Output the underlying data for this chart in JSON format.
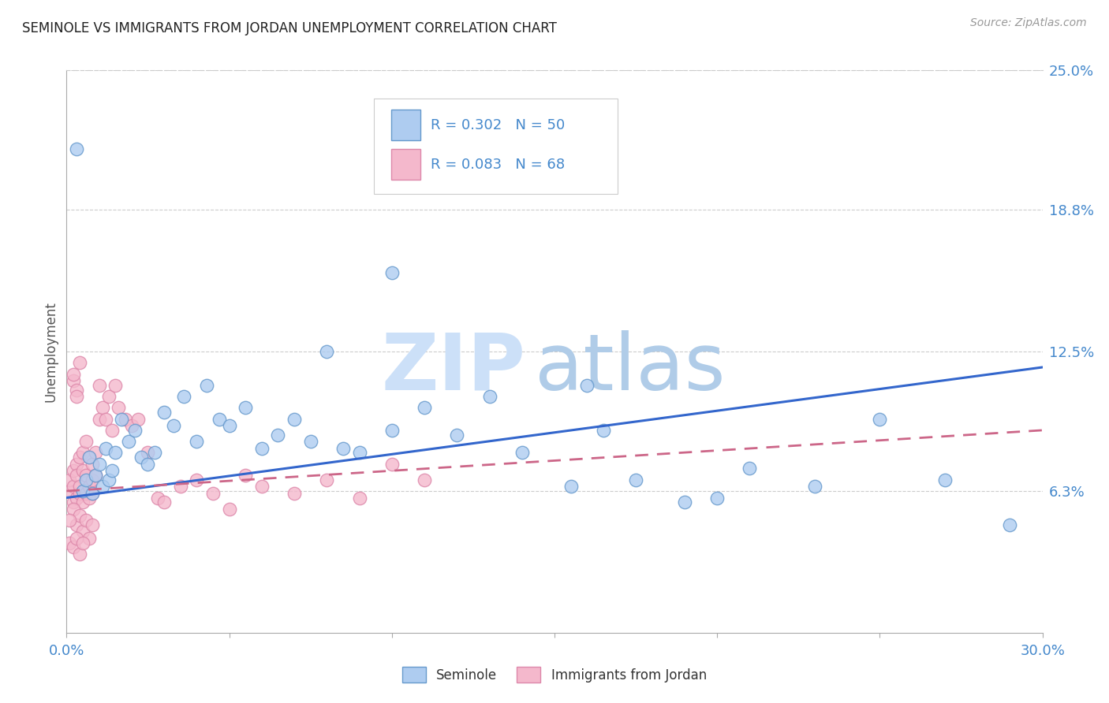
{
  "title": "SEMINOLE VS IMMIGRANTS FROM JORDAN UNEMPLOYMENT CORRELATION CHART",
  "source": "Source: ZipAtlas.com",
  "ylabel": "Unemployment",
  "xlim": [
    0.0,
    0.3
  ],
  "ylim": [
    0.0,
    0.25
  ],
  "xtick_positions": [
    0.0,
    0.05,
    0.1,
    0.15,
    0.2,
    0.25,
    0.3
  ],
  "xtick_labels": [
    "0.0%",
    "",
    "",
    "",
    "",
    "",
    "30.0%"
  ],
  "ytick_right": [
    0.063,
    0.125,
    0.188,
    0.25
  ],
  "ytick_right_labels": [
    "6.3%",
    "12.5%",
    "18.8%",
    "25.0%"
  ],
  "series1_name": "Seminole",
  "series1_R": "0.302",
  "series1_N": "50",
  "series1_color": "#aeccf0",
  "series1_edge": "#6699cc",
  "series2_name": "Immigrants from Jordan",
  "series2_R": "0.083",
  "series2_N": "68",
  "series2_color": "#f4b8cc",
  "series2_edge": "#dd88aa",
  "trend1_color": "#3366cc",
  "trend2_color": "#cc6688",
  "trend1_start_y": 0.06,
  "trend1_end_y": 0.118,
  "trend2_start_y": 0.063,
  "trend2_end_y": 0.09,
  "watermark_zip_color": "#cce0f8",
  "watermark_atlas_color": "#b8d4f0",
  "background_color": "#ffffff",
  "grid_color": "#cccccc",
  "title_color": "#222222",
  "right_axis_color": "#4488cc",
  "seminole_x": [
    0.003,
    0.005,
    0.006,
    0.007,
    0.008,
    0.009,
    0.01,
    0.011,
    0.012,
    0.013,
    0.014,
    0.015,
    0.017,
    0.019,
    0.021,
    0.023,
    0.025,
    0.027,
    0.03,
    0.033,
    0.036,
    0.04,
    0.043,
    0.047,
    0.05,
    0.055,
    0.06,
    0.065,
    0.07,
    0.075,
    0.08,
    0.085,
    0.09,
    0.1,
    0.11,
    0.12,
    0.13,
    0.14,
    0.155,
    0.165,
    0.175,
    0.19,
    0.21,
    0.23,
    0.25,
    0.27,
    0.29,
    0.1,
    0.2,
    0.16
  ],
  "seminole_y": [
    0.215,
    0.063,
    0.068,
    0.078,
    0.062,
    0.07,
    0.075,
    0.065,
    0.082,
    0.068,
    0.072,
    0.08,
    0.095,
    0.085,
    0.09,
    0.078,
    0.075,
    0.08,
    0.098,
    0.092,
    0.105,
    0.085,
    0.11,
    0.095,
    0.092,
    0.1,
    0.082,
    0.088,
    0.095,
    0.085,
    0.125,
    0.082,
    0.08,
    0.09,
    0.1,
    0.088,
    0.105,
    0.08,
    0.065,
    0.09,
    0.068,
    0.058,
    0.073,
    0.065,
    0.095,
    0.068,
    0.048,
    0.16,
    0.06,
    0.11
  ],
  "jordan_x": [
    0.001,
    0.001,
    0.002,
    0.002,
    0.002,
    0.003,
    0.003,
    0.003,
    0.004,
    0.004,
    0.004,
    0.005,
    0.005,
    0.005,
    0.006,
    0.006,
    0.006,
    0.007,
    0.007,
    0.007,
    0.008,
    0.008,
    0.008,
    0.009,
    0.009,
    0.01,
    0.01,
    0.011,
    0.012,
    0.013,
    0.014,
    0.015,
    0.016,
    0.018,
    0.02,
    0.022,
    0.025,
    0.028,
    0.03,
    0.035,
    0.04,
    0.045,
    0.05,
    0.055,
    0.06,
    0.07,
    0.08,
    0.09,
    0.1,
    0.11,
    0.002,
    0.003,
    0.004,
    0.005,
    0.006,
    0.007,
    0.008,
    0.001,
    0.001,
    0.002,
    0.003,
    0.004,
    0.005,
    0.002,
    0.003,
    0.004,
    0.002,
    0.003
  ],
  "jordan_y": [
    0.063,
    0.068,
    0.058,
    0.072,
    0.065,
    0.06,
    0.075,
    0.07,
    0.062,
    0.078,
    0.065,
    0.058,
    0.08,
    0.072,
    0.062,
    0.085,
    0.07,
    0.065,
    0.078,
    0.06,
    0.075,
    0.068,
    0.062,
    0.08,
    0.07,
    0.095,
    0.11,
    0.1,
    0.095,
    0.105,
    0.09,
    0.11,
    0.1,
    0.095,
    0.092,
    0.095,
    0.08,
    0.06,
    0.058,
    0.065,
    0.068,
    0.062,
    0.055,
    0.07,
    0.065,
    0.062,
    0.068,
    0.06,
    0.075,
    0.068,
    0.055,
    0.048,
    0.052,
    0.045,
    0.05,
    0.042,
    0.048,
    0.05,
    0.04,
    0.038,
    0.042,
    0.035,
    0.04,
    0.112,
    0.108,
    0.12,
    0.115,
    0.105
  ]
}
